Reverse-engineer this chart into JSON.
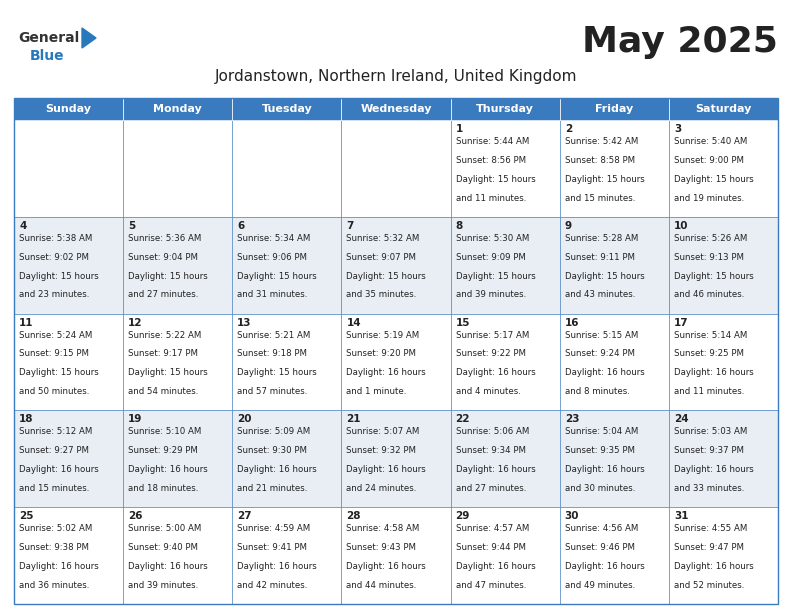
{
  "title": "May 2025",
  "subtitle": "Jordanstown, Northern Ireland, United Kingdom",
  "header_bg": "#3a7abf",
  "header_text": "#ffffff",
  "weekdays": [
    "Sunday",
    "Monday",
    "Tuesday",
    "Wednesday",
    "Thursday",
    "Friday",
    "Saturday"
  ],
  "row_colors": [
    "#ffffff",
    "#e8eef4"
  ],
  "border_color": "#3a7abf",
  "text_color": "#222222",
  "day_num_color": "#222222",
  "logo_blue": "#2878be",
  "calendar": [
    [
      null,
      null,
      null,
      null,
      {
        "day": 1,
        "sunrise": "5:44 AM",
        "sunset": "8:56 PM",
        "daylight": "15 hours and 11 minutes."
      },
      {
        "day": 2,
        "sunrise": "5:42 AM",
        "sunset": "8:58 PM",
        "daylight": "15 hours and 15 minutes."
      },
      {
        "day": 3,
        "sunrise": "5:40 AM",
        "sunset": "9:00 PM",
        "daylight": "15 hours and 19 minutes."
      }
    ],
    [
      {
        "day": 4,
        "sunrise": "5:38 AM",
        "sunset": "9:02 PM",
        "daylight": "15 hours and 23 minutes."
      },
      {
        "day": 5,
        "sunrise": "5:36 AM",
        "sunset": "9:04 PM",
        "daylight": "15 hours and 27 minutes."
      },
      {
        "day": 6,
        "sunrise": "5:34 AM",
        "sunset": "9:06 PM",
        "daylight": "15 hours and 31 minutes."
      },
      {
        "day": 7,
        "sunrise": "5:32 AM",
        "sunset": "9:07 PM",
        "daylight": "15 hours and 35 minutes."
      },
      {
        "day": 8,
        "sunrise": "5:30 AM",
        "sunset": "9:09 PM",
        "daylight": "15 hours and 39 minutes."
      },
      {
        "day": 9,
        "sunrise": "5:28 AM",
        "sunset": "9:11 PM",
        "daylight": "15 hours and 43 minutes."
      },
      {
        "day": 10,
        "sunrise": "5:26 AM",
        "sunset": "9:13 PM",
        "daylight": "15 hours and 46 minutes."
      }
    ],
    [
      {
        "day": 11,
        "sunrise": "5:24 AM",
        "sunset": "9:15 PM",
        "daylight": "15 hours and 50 minutes."
      },
      {
        "day": 12,
        "sunrise": "5:22 AM",
        "sunset": "9:17 PM",
        "daylight": "15 hours and 54 minutes."
      },
      {
        "day": 13,
        "sunrise": "5:21 AM",
        "sunset": "9:18 PM",
        "daylight": "15 hours and 57 minutes."
      },
      {
        "day": 14,
        "sunrise": "5:19 AM",
        "sunset": "9:20 PM",
        "daylight": "16 hours and 1 minute."
      },
      {
        "day": 15,
        "sunrise": "5:17 AM",
        "sunset": "9:22 PM",
        "daylight": "16 hours and 4 minutes."
      },
      {
        "day": 16,
        "sunrise": "5:15 AM",
        "sunset": "9:24 PM",
        "daylight": "16 hours and 8 minutes."
      },
      {
        "day": 17,
        "sunrise": "5:14 AM",
        "sunset": "9:25 PM",
        "daylight": "16 hours and 11 minutes."
      }
    ],
    [
      {
        "day": 18,
        "sunrise": "5:12 AM",
        "sunset": "9:27 PM",
        "daylight": "16 hours and 15 minutes."
      },
      {
        "day": 19,
        "sunrise": "5:10 AM",
        "sunset": "9:29 PM",
        "daylight": "16 hours and 18 minutes."
      },
      {
        "day": 20,
        "sunrise": "5:09 AM",
        "sunset": "9:30 PM",
        "daylight": "16 hours and 21 minutes."
      },
      {
        "day": 21,
        "sunrise": "5:07 AM",
        "sunset": "9:32 PM",
        "daylight": "16 hours and 24 minutes."
      },
      {
        "day": 22,
        "sunrise": "5:06 AM",
        "sunset": "9:34 PM",
        "daylight": "16 hours and 27 minutes."
      },
      {
        "day": 23,
        "sunrise": "5:04 AM",
        "sunset": "9:35 PM",
        "daylight": "16 hours and 30 minutes."
      },
      {
        "day": 24,
        "sunrise": "5:03 AM",
        "sunset": "9:37 PM",
        "daylight": "16 hours and 33 minutes."
      }
    ],
    [
      {
        "day": 25,
        "sunrise": "5:02 AM",
        "sunset": "9:38 PM",
        "daylight": "16 hours and 36 minutes."
      },
      {
        "day": 26,
        "sunrise": "5:00 AM",
        "sunset": "9:40 PM",
        "daylight": "16 hours and 39 minutes."
      },
      {
        "day": 27,
        "sunrise": "4:59 AM",
        "sunset": "9:41 PM",
        "daylight": "16 hours and 42 minutes."
      },
      {
        "day": 28,
        "sunrise": "4:58 AM",
        "sunset": "9:43 PM",
        "daylight": "16 hours and 44 minutes."
      },
      {
        "day": 29,
        "sunrise": "4:57 AM",
        "sunset": "9:44 PM",
        "daylight": "16 hours and 47 minutes."
      },
      {
        "day": 30,
        "sunrise": "4:56 AM",
        "sunset": "9:46 PM",
        "daylight": "16 hours and 49 minutes."
      },
      {
        "day": 31,
        "sunrise": "4:55 AM",
        "sunset": "9:47 PM",
        "daylight": "16 hours and 52 minutes."
      }
    ]
  ]
}
